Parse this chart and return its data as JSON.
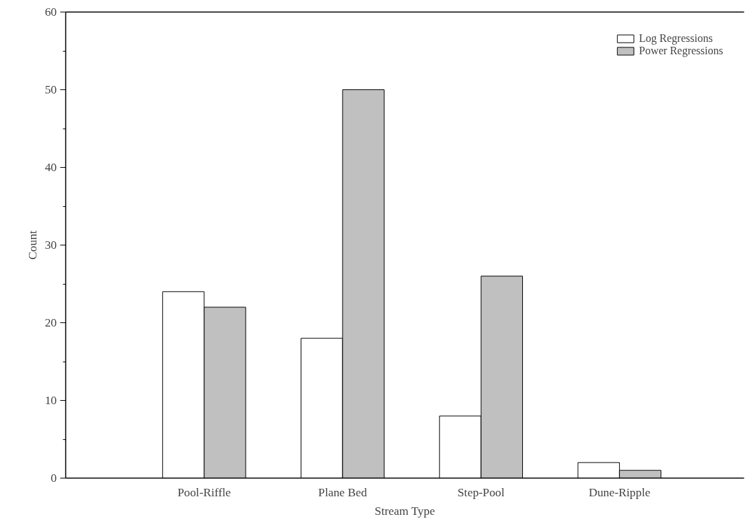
{
  "chart_data": {
    "type": "bar",
    "xlabel": "Stream Type",
    "ylabel": "Count",
    "categories": [
      "Pool-Riffle",
      "Plane Bed",
      "Step-Pool",
      "Dune-Ripple"
    ],
    "series": [
      {
        "name": "Log Regressions",
        "color": "#ffffff",
        "values": [
          24,
          18,
          8,
          2
        ]
      },
      {
        "name": "Power Regressions",
        "color": "#c0c0c0",
        "values": [
          22,
          50,
          26,
          1
        ]
      }
    ],
    "ylim": [
      0,
      60
    ],
    "yticks": [
      0,
      10,
      20,
      30,
      40,
      50,
      60
    ],
    "grid": false,
    "legend": "top right"
  }
}
